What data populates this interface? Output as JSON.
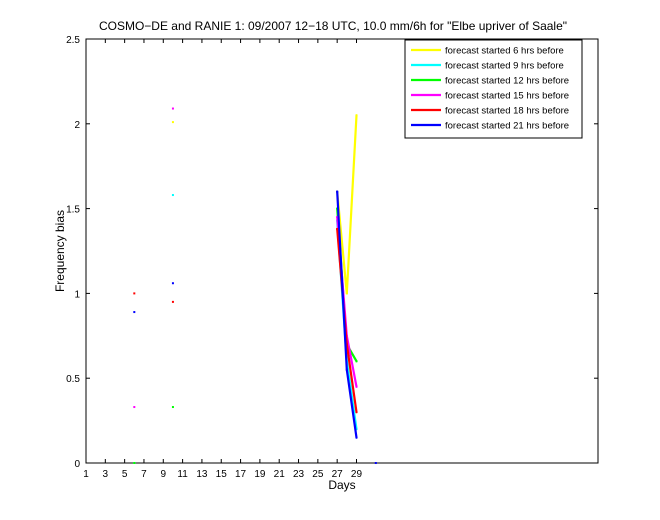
{
  "chart_data": {
    "type": "line",
    "title": "COSMO−DE and RANIE 1: 09/2007 12−18 UTC, 10.0 mm/6h for \"Elbe upriver of Saale\"",
    "xlabel": "Days",
    "ylabel": "Frequency bias",
    "xlim": [
      1,
      54
    ],
    "ylim": [
      0,
      2.5
    ],
    "xticks": [
      1,
      3,
      5,
      7,
      9,
      11,
      13,
      15,
      17,
      19,
      21,
      23,
      25,
      27,
      29
    ],
    "xtick_labels": [
      "1",
      "3",
      "5",
      "7",
      "9",
      "11",
      "13",
      "15",
      "17",
      "19",
      "21",
      "23",
      "25",
      "27",
      "29"
    ],
    "yticks": [
      0,
      0.5,
      1,
      1.5,
      2,
      2.5
    ],
    "ytick_labels": [
      "0",
      "0.5",
      "1",
      "1.5",
      "2",
      "2.5"
    ],
    "legend_position": "top-right",
    "grid": false,
    "series": [
      {
        "name": "forecast started 6 hrs before",
        "color": "#ffff00",
        "x": [
          6,
          10,
          27,
          28,
          29
        ],
        "y": [
          0,
          2.01,
          1.6,
          1.0,
          2.05
        ]
      },
      {
        "name": "forecast started 9 hrs before",
        "color": "#00ffff",
        "x": [
          6,
          10,
          27,
          28,
          29
        ],
        "y": [
          0,
          1.58,
          1.43,
          0.6,
          0.2
        ]
      },
      {
        "name": "forecast started 12 hrs before",
        "color": "#00ff00",
        "x": [
          6,
          10,
          27,
          28,
          29
        ],
        "y": [
          0,
          0.33,
          1.5,
          0.7,
          0.6
        ]
      },
      {
        "name": "forecast started 15 hrs before",
        "color": "#ff00ff",
        "x": [
          6,
          10,
          27,
          28,
          29
        ],
        "y": [
          0.33,
          2.09,
          1.45,
          0.75,
          0.45
        ]
      },
      {
        "name": "forecast started 18 hrs before",
        "color": "#ff0000",
        "x": [
          6,
          10,
          27,
          28,
          29
        ],
        "y": [
          1.0,
          0.95,
          1.38,
          0.7,
          0.3
        ]
      },
      {
        "name": "forecast started 21 hrs before",
        "color": "#0000ff",
        "x": [
          6,
          10,
          27,
          28,
          29,
          31
        ],
        "y": [
          0.89,
          1.06,
          1.6,
          0.55,
          0.15,
          0
        ]
      }
    ]
  }
}
